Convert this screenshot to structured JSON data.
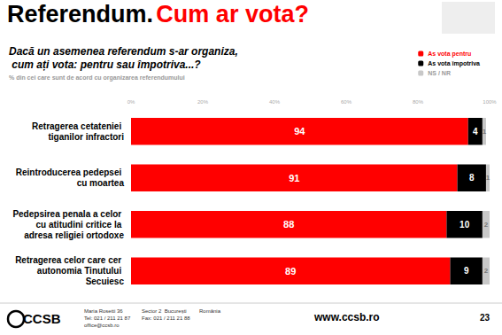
{
  "chart_data": {
    "type": "bar",
    "orientation": "horizontal",
    "stacked": true,
    "data_labels": true,
    "grid": false,
    "legend": "top-right",
    "title": "Referendum. Cum ar vota?",
    "subtitle": "Dacă un asemenea referendum s-ar organiza, cum ați vota: pentru sau împotriva...?",
    "annotations": [
      "% din cei care sunt de acord cu organizarea referendumului",
      "CCSB",
      "Maria Rosetti 36",
      "Sector 2  București",
      "România",
      "Tel: 021 / 211 21 87",
      "Fax: 021 / 211 21 88",
      "office@ccsb.ro",
      "www.ccsb.ro",
      "23"
    ],
    "categories": [
      "Retragerea cetateniei tiganilor infractori",
      "Reintroducerea pedepsei cu moartea",
      "Pedepsirea penala a celor cu atitudini critice la adresa religiei ortodoxe",
      "Retragerea celor care cer autonomia Tinutului Secuiesc"
    ],
    "series": [
      {
        "name": "As vota pentru",
        "color": "#ff0000",
        "values": [
          94,
          91,
          88,
          89
        ]
      },
      {
        "name": "As vota împotriva",
        "color": "#000000",
        "values": [
          4,
          8,
          10,
          9
        ]
      },
      {
        "name": "NS / NR",
        "color": "#c8c8c8",
        "values": [
          1,
          1,
          2,
          2
        ]
      }
    ],
    "xlim": [
      0,
      100
    ],
    "xticks": [
      {
        "value": 0,
        "label": "0%"
      },
      {
        "value": 20,
        "label": "20%"
      },
      {
        "value": 40,
        "label": "40%"
      },
      {
        "value": 60,
        "label": "60%"
      },
      {
        "value": 80,
        "label": "80%"
      },
      {
        "value": 100,
        "label": "100%"
      }
    ]
  }
}
